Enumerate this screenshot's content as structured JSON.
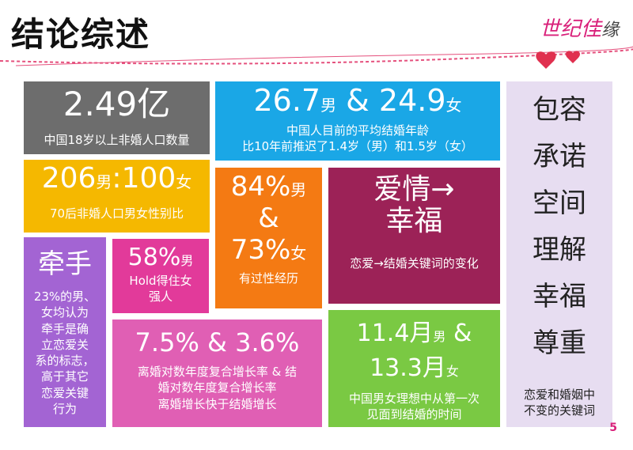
{
  "title": "结论综述",
  "brand": {
    "text": "世纪佳",
    "last": "缘"
  },
  "tiles": {
    "t1": {
      "big": "2.49亿",
      "caption": "中国18岁以上非婚人口数量",
      "color": "#6d6d6d"
    },
    "t2": {
      "num1": "26.7",
      "g1": "男",
      "amp": " & ",
      "num2": "24.9",
      "g2": "女",
      "line1": "中国人目前的平均结婚年龄",
      "line2": "比10年前推迟了1.4岁（男）和1.5岁（女）",
      "color": "#1aa7e6"
    },
    "t3": {
      "num1": "206",
      "g1": "男",
      "colon": ":",
      "num2": "100",
      "g2": "女",
      "caption": "70后非婚人口男女性别比",
      "color": "#f5b800"
    },
    "t4": {
      "num1": "84%",
      "g1": "男",
      "amp": "&",
      "num2": "73%",
      "g2": "女",
      "caption": "有过性经历",
      "color": "#f47a13"
    },
    "t5": {
      "line1": "爱情→",
      "line2": "幸福",
      "caption": "恋爱→结婚关键词的变化",
      "color": "#9c2257"
    },
    "t6": {
      "big": "牵手",
      "lines": [
        "23%的男、",
        "女均认为",
        "牵手是确",
        "立恋爱关",
        "系的标志，",
        "高于其它",
        "恋爱关键",
        "行为"
      ],
      "color": "#a364d3"
    },
    "t7": {
      "num": "58%",
      "g": "男",
      "line1": "Hold得住女",
      "line2": "强人",
      "color": "#e23a9a"
    },
    "t8": {
      "big": "7.5% & 3.6%",
      "line1": "离婚对数年度复合增长率 & 结",
      "line2": "婚对数年度复合增长率",
      "line3": "离婚增长快于结婚增长",
      "color": "#e05fb4"
    },
    "t9": {
      "num1": "11.4月",
      "g1": "男",
      "amp": " &",
      "num2": "13.3月",
      "g2": "女",
      "line1": "中国男女理想中从第一次",
      "line2": "见面到结婚的时间",
      "color": "#7ac943"
    },
    "t10": {
      "words": [
        "包容",
        "承诺",
        "空间",
        "理解",
        "幸福",
        "尊重"
      ],
      "line1": "恋爱和婚姻中",
      "line2": "不变的关键词",
      "color": "#e7ddf1"
    }
  },
  "page_number": "5"
}
